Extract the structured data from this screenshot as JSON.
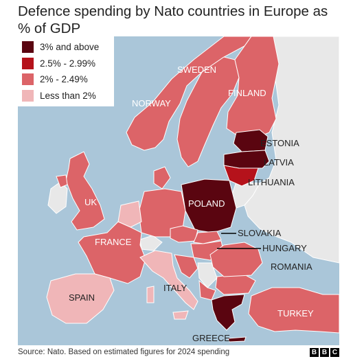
{
  "title": "Defence spending by Nato countries in Europe as % of GDP",
  "legend": {
    "items": [
      {
        "label": "3% and above",
        "color": "#5a0510"
      },
      {
        "label": "2.5% - 2.99%",
        "color": "#b5121b"
      },
      {
        "label": "2% - 2.49%",
        "color": "#dc6468"
      },
      {
        "label": "Less than 2%",
        "color": "#f0b6b8"
      }
    ]
  },
  "colors": {
    "sea": "#aac6d9",
    "non_nato": "#e8e8e8",
    "border": "#ffffff",
    "label_light": "#ffffff",
    "label_dark": "#222222"
  },
  "countries": [
    {
      "name": "NORWAY",
      "category": "2% - 2.49%"
    },
    {
      "name": "SWEDEN",
      "category": "2% - 2.49%"
    },
    {
      "name": "FINLAND",
      "category": "2% - 2.49%"
    },
    {
      "name": "ESTONIA",
      "category": "3% and above"
    },
    {
      "name": "LATVIA",
      "category": "3% and above"
    },
    {
      "name": "LITHUANIA",
      "category": "2.5% - 2.99%"
    },
    {
      "name": "POLAND",
      "category": "3% and above"
    },
    {
      "name": "SLOVAKIA",
      "category": "2% - 2.49%"
    },
    {
      "name": "HUNGARY",
      "category": "2% - 2.49%"
    },
    {
      "name": "ROMANIA",
      "category": "2% - 2.49%"
    },
    {
      "name": "UK",
      "category": "2% - 2.49%"
    },
    {
      "name": "FRANCE",
      "category": "2% - 2.49%"
    },
    {
      "name": "SPAIN",
      "category": "Less than 2%"
    },
    {
      "name": "ITALY",
      "category": "Less than 2%"
    },
    {
      "name": "TURKEY",
      "category": "2% - 2.49%"
    },
    {
      "name": "GREECE",
      "category": "3% and above"
    }
  ],
  "source": "Source: Nato. Based on estimated figures for 2024 spending",
  "logo": [
    "B",
    "B",
    "C"
  ]
}
